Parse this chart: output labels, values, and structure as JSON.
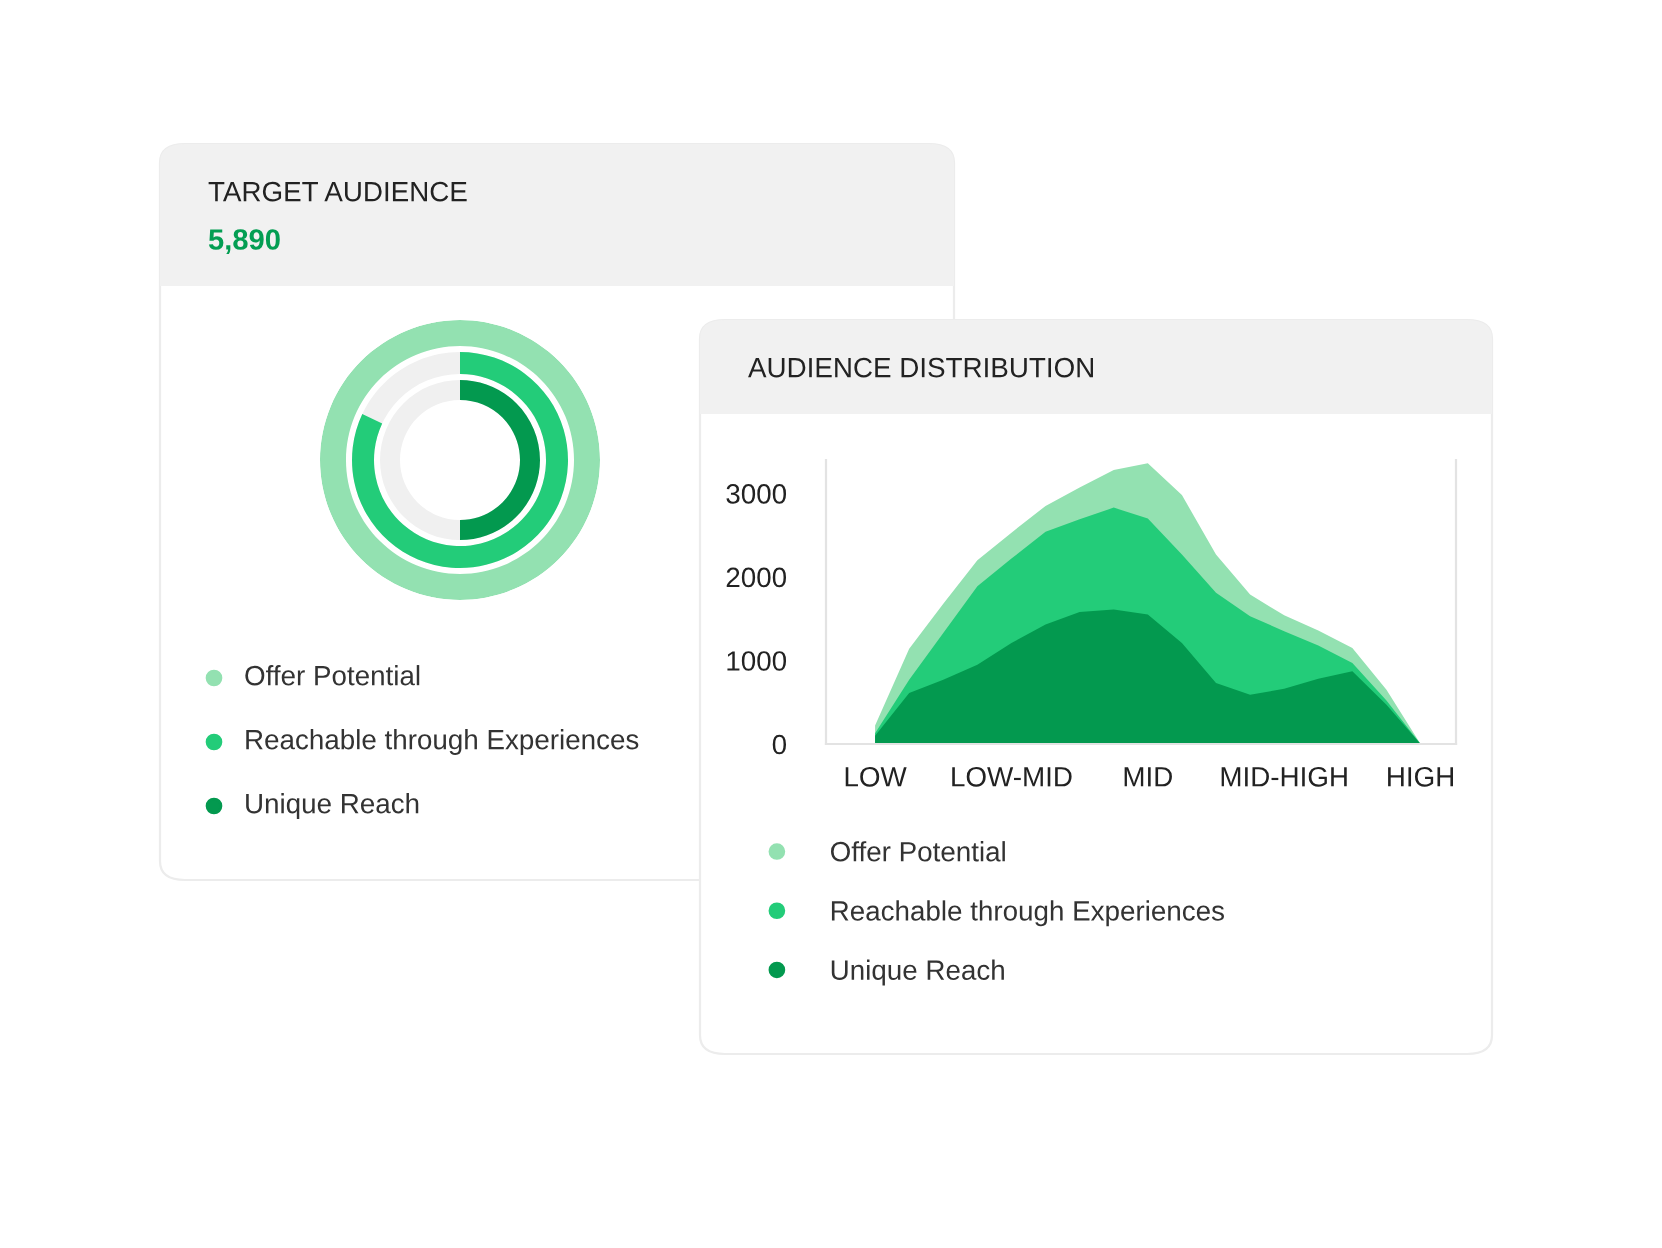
{
  "chart_data": [
    {
      "type": "other",
      "title": "TARGET AUDIENCE",
      "subtitle": "5,890",
      "annotations": [
        "Offer Potential",
        "Reachable through Experiences",
        "Unique Reach"
      ]
    },
    {
      "type": "area",
      "title": "AUDIENCE DISTRIBUTION",
      "legend": "bottom",
      "ylim": [
        0,
        3400
      ],
      "yticks": [
        0,
        1000,
        2000,
        3000
      ],
      "categories": [
        "LOW",
        null,
        null,
        null,
        "LOW-MID",
        null,
        null,
        null,
        "MID",
        null,
        null,
        null,
        "MID-HIGH",
        null,
        null,
        null,
        "HIGH"
      ],
      "series": [
        {
          "name": "Offer Potential",
          "color": "#93e1b1",
          "values": [
            220,
            1140,
            1680,
            2200,
            2530,
            2850,
            3070,
            3280,
            3360,
            2980,
            2270,
            1790,
            1540,
            1360,
            1150,
            650,
            0
          ]
        },
        {
          "name": "Reachable through Experiences",
          "color": "#23cc79",
          "values": [
            130,
            770,
            1330,
            1890,
            2220,
            2540,
            2690,
            2830,
            2700,
            2270,
            1810,
            1530,
            1350,
            1180,
            970,
            520,
            0
          ]
        },
        {
          "name": "Unique Reach",
          "color": "#03994f",
          "values": [
            100,
            610,
            770,
            950,
            1210,
            1430,
            1580,
            1610,
            1550,
            1210,
            730,
            590,
            660,
            780,
            870,
            470,
            0
          ]
        }
      ]
    }
  ]
}
